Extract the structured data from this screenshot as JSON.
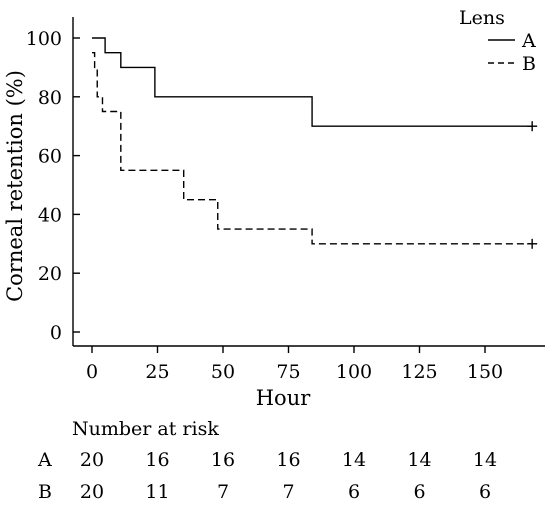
{
  "chart_data": {
    "type": "line",
    "step": true,
    "xlabel": "Hour",
    "ylabel": "Corneal retention (%)",
    "xlim": [
      -5,
      170
    ],
    "ylim": [
      -3,
      103
    ],
    "x_ticks": [
      0,
      25,
      50,
      75,
      100,
      125,
      150
    ],
    "y_ticks": [
      0,
      20,
      40,
      60,
      80,
      100
    ],
    "grid": false,
    "legend": {
      "title": "Lens",
      "placement": "top-right"
    },
    "series": [
      {
        "name": "A",
        "style": "solid",
        "x": [
          0,
          5,
          5,
          11,
          11,
          24,
          24,
          84,
          84,
          168
        ],
        "y": [
          100,
          100,
          95,
          95,
          90,
          90,
          80,
          80,
          70,
          70
        ],
        "censored": [
          [
            168,
            70
          ]
        ]
      },
      {
        "name": "B",
        "style": "dashed",
        "x": [
          0,
          1,
          1,
          2,
          2,
          4,
          4,
          5,
          5,
          11,
          11,
          35,
          35,
          48,
          48,
          84,
          84,
          168
        ],
        "y": [
          95,
          95,
          90,
          90,
          80,
          80,
          75,
          75,
          75,
          75,
          55,
          55,
          45,
          45,
          35,
          35,
          30,
          30
        ],
        "censored": [
          [
            168,
            30
          ]
        ]
      }
    ],
    "risk_table": {
      "title": "Number at risk",
      "rows": [
        {
          "label": "A",
          "values": [
            "20",
            "16",
            "16",
            "16",
            "14",
            "14",
            "14"
          ]
        },
        {
          "label": "B",
          "values": [
            "20",
            "11",
            "7",
            "7",
            "6",
            "6",
            "6"
          ]
        }
      ]
    }
  }
}
